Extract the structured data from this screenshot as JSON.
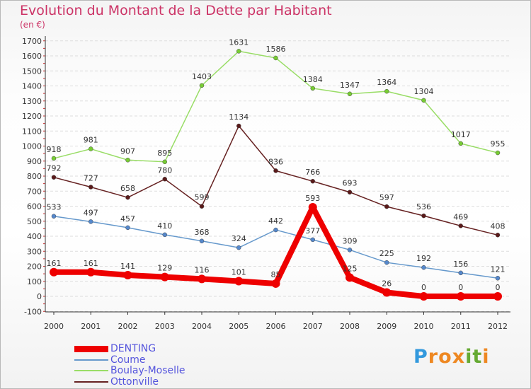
{
  "title": "Evolution du Montant de la Dette par Habitant",
  "subtitle": "(en €)",
  "logo": {
    "text": "Proxiti",
    "letters": [
      "P",
      "r",
      "o",
      "x",
      "i",
      "t",
      "i"
    ],
    "colors": [
      "#3399dd",
      "#ee8822",
      "#ee8822",
      "#ee8822",
      "#66aa33",
      "#66aa33",
      "#ee8822"
    ]
  },
  "chart_data": {
    "type": "line",
    "x": [
      "2000",
      "2001",
      "2002",
      "2003",
      "2004",
      "2005",
      "2006",
      "2007",
      "2008",
      "2009",
      "2010",
      "2011",
      "2012"
    ],
    "ylim": [
      -100,
      1700
    ],
    "yticks": [
      -100,
      0,
      100,
      200,
      300,
      400,
      500,
      600,
      700,
      800,
      900,
      1000,
      1100,
      1200,
      1300,
      1400,
      1500,
      1600,
      1700
    ],
    "grid": true,
    "legend_position": "bottom-left",
    "series": [
      {
        "name": "Boulay-Moselle",
        "color": "#99dd66",
        "marker": "#77cc33",
        "width": 1.5,
        "values": [
          918,
          981,
          907,
          895,
          1403,
          1631,
          1586,
          1384,
          1347,
          1364,
          1304,
          1017,
          955
        ]
      },
      {
        "name": "Ottonville",
        "color": "#662222",
        "marker": "#5a1a1a",
        "width": 1.5,
        "values": [
          792,
          727,
          658,
          780,
          599,
          1134,
          836,
          766,
          693,
          597,
          536,
          469,
          408
        ]
      },
      {
        "name": "Coume",
        "color": "#6699cc",
        "marker": "#5588cc",
        "width": 1.5,
        "values": [
          533,
          497,
          457,
          410,
          368,
          324,
          442,
          377,
          309,
          225,
          192,
          156,
          121
        ]
      },
      {
        "name": "DENTING",
        "color": "#ee0000",
        "marker": "#ee0000",
        "width": 8,
        "values": [
          161,
          161,
          141,
          129,
          116,
          101,
          85,
          593,
          125,
          26,
          0,
          0,
          0
        ]
      }
    ],
    "legend": [
      "DENTING",
      "Coume",
      "Boulay-Moselle",
      "Ottonville"
    ]
  }
}
